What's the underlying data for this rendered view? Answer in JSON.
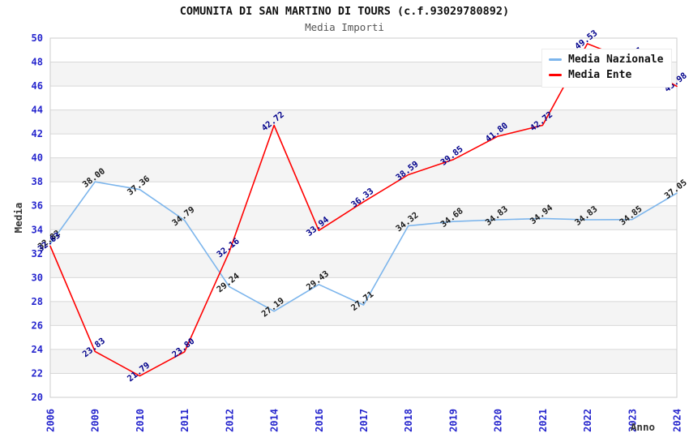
{
  "header": {
    "title": "COMUNITA DI SAN MARTINO DI TOURS (c.f.93029780892)",
    "subtitle": "Media Importi"
  },
  "legend": {
    "items": [
      {
        "label": "Media Nazionale",
        "color": "#7cb5ec"
      },
      {
        "label": "Media Ente",
        "color": "#ff0000"
      }
    ]
  },
  "chart_data": {
    "type": "line",
    "title": "COMUNITA DI SAN MARTINO DI TOURS (c.f.93029780892)",
    "subtitle": "Media Importi",
    "xlabel": "Anno",
    "ylabel": "Media",
    "x": [
      "2006",
      "2009",
      "2010",
      "2011",
      "2012",
      "2014",
      "2016",
      "2017",
      "2018",
      "2019",
      "2020",
      "2021",
      "2022",
      "2023",
      "2024"
    ],
    "series": [
      {
        "name": "Media Nazionale",
        "color": "#7cb5ec",
        "label_color": "#1a1a1a",
        "values": [
          32.82,
          38.0,
          37.36,
          34.79,
          29.24,
          27.19,
          29.43,
          27.71,
          34.32,
          34.68,
          34.83,
          34.94,
          34.83,
          34.85,
          37.05
        ]
      },
      {
        "name": "Media Ente",
        "color": "#ff0000",
        "label_color": "#00008b",
        "values": [
          32.63,
          23.83,
          21.79,
          23.8,
          32.16,
          42.72,
          33.94,
          36.33,
          38.59,
          39.85,
          41.8,
          42.72,
          49.53,
          48.07,
          45.98
        ]
      }
    ],
    "ylim": [
      20,
      50
    ],
    "yticks": [
      20,
      22,
      24,
      26,
      28,
      30,
      32,
      34,
      36,
      38,
      40,
      42,
      44,
      46,
      48,
      50
    ],
    "grid": true,
    "alternating_bands": true,
    "legend_position": "top-right",
    "note_2023_ente_label_partially_hidden_behind_legend": "48.07"
  },
  "colors": {
    "axis_tick_text": "#2525cd",
    "axis_title_text": "#333333",
    "gridline": "#d8d8d8",
    "plot_border": "#cccccc",
    "band_fill": "#f4f4f4",
    "title_text": "#111111",
    "subtitle_text": "#555555"
  }
}
